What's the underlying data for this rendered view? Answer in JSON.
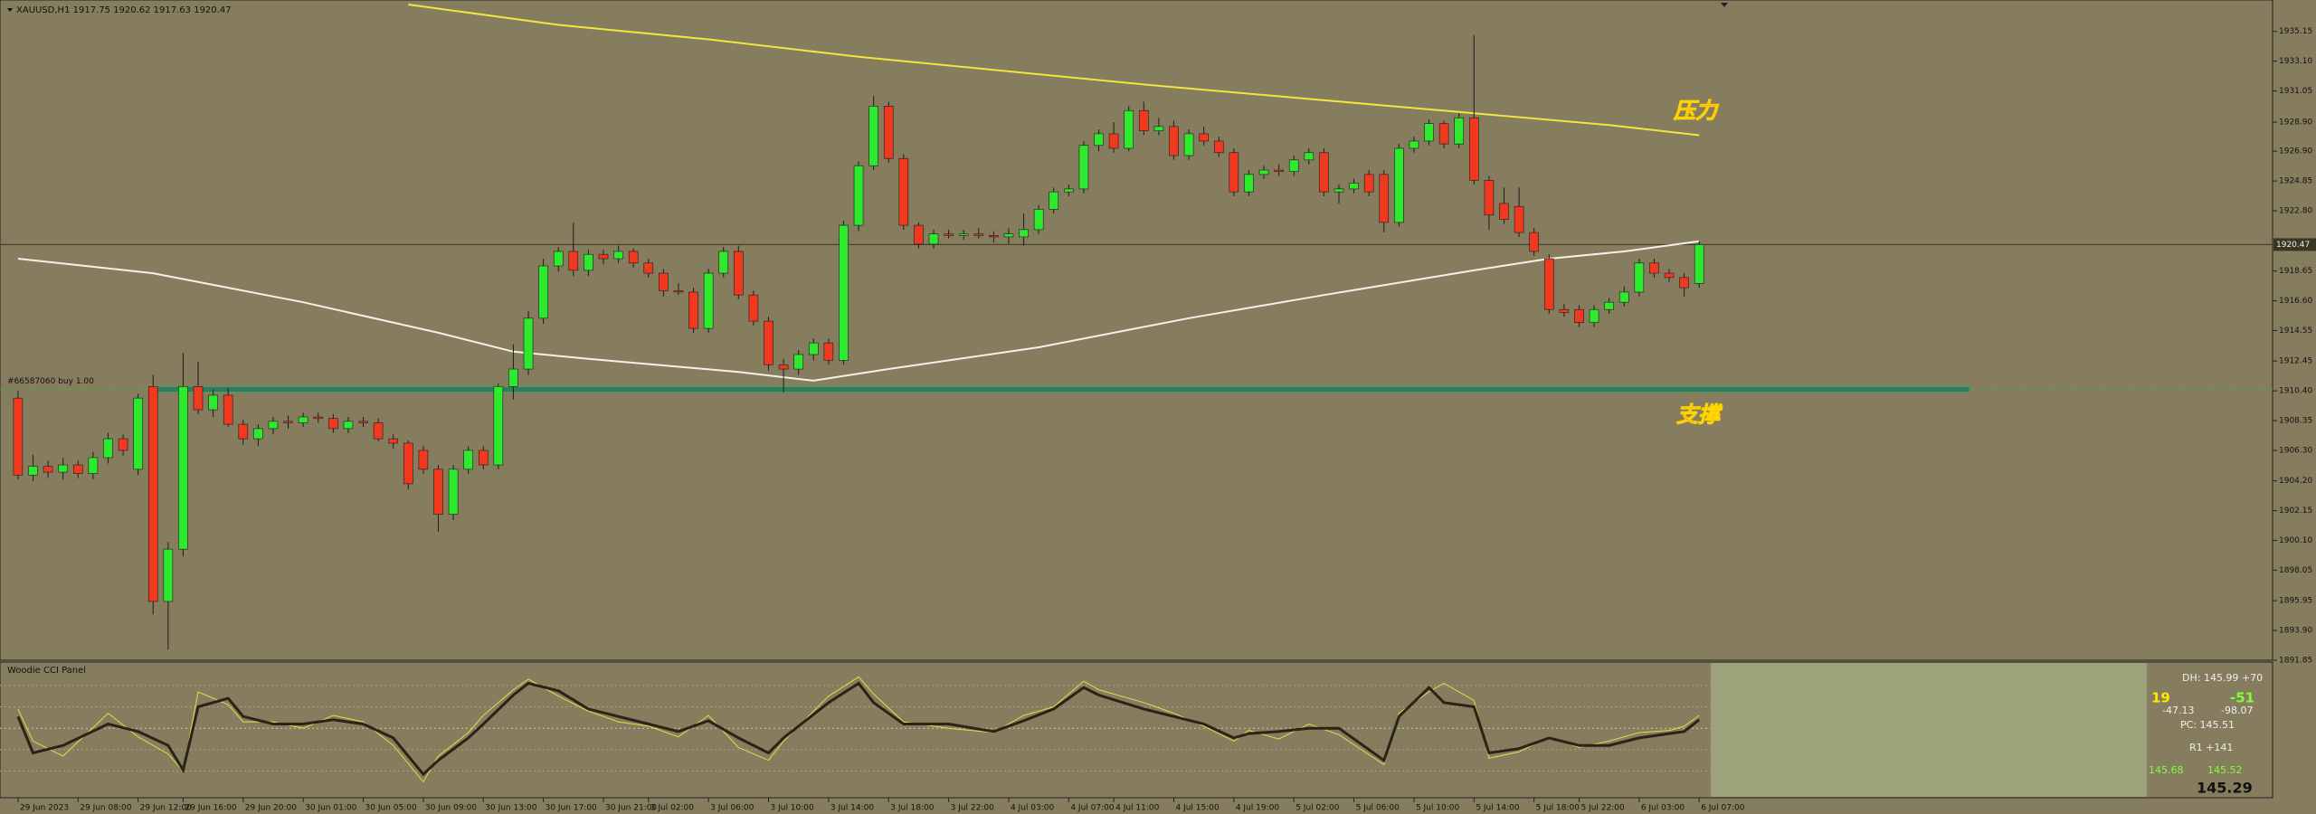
{
  "chart_data": [
    {
      "type": "candlestick",
      "title": "XAUUSD,H1  1917.75 1920.62 1917.63 1920.47",
      "up_color": "#2eea2e",
      "down_color": "#f0391f",
      "xlim": [
        -1.2,
        150.2
      ],
      "ylim": [
        1891.85,
        1937.0
      ],
      "yticks": [
        1891.85,
        {
          "value": 1893.9,
          "label": "1893.90"
        },
        1895.95,
        1898.05,
        {
          "value": 1900.1,
          "label": "1900.10"
        },
        1902.15,
        {
          "value": 1904.2,
          "label": "1904.20"
        },
        {
          "value": 1906.3,
          "label": "1906.30"
        },
        1908.35,
        {
          "value": 1910.4,
          "label": "1910.40"
        },
        1912.45,
        1914.55,
        {
          "value": 1916.6,
          "label": "1916.60"
        },
        1918.65,
        {
          "value": 1922.8,
          "label": "1922.80"
        },
        1924.85,
        {
          "value": 1926.9,
          "label": "1926.90"
        },
        {
          "value": 1928.9,
          "label": "1928.90"
        },
        1931.05,
        {
          "value": 1933.1,
          "label": "1933.10"
        },
        1935.15
      ],
      "xticks": [
        {
          "value": 0,
          "label": "29 Jun 2023"
        },
        {
          "value": 4,
          "label": "29 Jun 08:00"
        },
        {
          "value": 8,
          "label": "29 Jun 12:00"
        },
        {
          "value": 11,
          "label": "29 Jun 16:00"
        },
        {
          "value": 15,
          "label": "29 Jun 20:00"
        },
        {
          "value": 19,
          "label": "30 Jun 01:00"
        },
        {
          "value": 23,
          "label": "30 Jun 05:00"
        },
        {
          "value": 27,
          "label": "30 Jun 09:00"
        },
        {
          "value": 31,
          "label": "30 Jun 13:00"
        },
        {
          "value": 35,
          "label": "30 Jun 17:00"
        },
        {
          "value": 39,
          "label": "30 Jun 21:00"
        },
        {
          "value": 42,
          "label": "3 Jul 02:00"
        },
        {
          "value": 46,
          "label": "3 Jul 06:00"
        },
        {
          "value": 50,
          "label": "3 Jul 10:00"
        },
        {
          "value": 54,
          "label": "3 Jul 14:00"
        },
        {
          "value": 58,
          "label": "3 Jul 18:00"
        },
        {
          "value": 62,
          "label": "3 Jul 22:00"
        },
        {
          "value": 66,
          "label": "4 Jul 03:00"
        },
        {
          "value": 70,
          "label": "4 Jul 07:00"
        },
        {
          "value": 73,
          "label": "4 Jul 11:00"
        },
        {
          "value": 77,
          "label": "4 Jul 15:00"
        },
        {
          "value": 81,
          "label": "4 Jul 19:00"
        },
        {
          "value": 85,
          "label": "5 Jul 02:00"
        },
        {
          "value": 89,
          "label": "5 Jul 06:00"
        },
        {
          "value": 93,
          "label": "5 Jul 10:00"
        },
        {
          "value": 97,
          "label": "5 Jul 14:00"
        },
        {
          "value": 101,
          "label": "5 Jul 18:00"
        },
        {
          "value": 104,
          "label": "5 Jul 22:00"
        },
        {
          "value": 108,
          "label": "6 Jul 03:00"
        },
        {
          "value": 112,
          "label": "6 Jul 07:00"
        }
      ],
      "candles": [
        [
          1909.9,
          1910.4,
          1904.3,
          1904.6
        ],
        [
          1904.6,
          1906.0,
          1904.2,
          1905.2
        ],
        [
          1905.2,
          1905.6,
          1904.4,
          1904.8
        ],
        [
          1904.8,
          1905.8,
          1904.3,
          1905.3
        ],
        [
          1905.3,
          1905.6,
          1904.4,
          1904.7
        ],
        [
          1904.7,
          1906.2,
          1904.3,
          1905.8
        ],
        [
          1905.8,
          1907.5,
          1905.4,
          1907.1
        ],
        [
          1907.1,
          1907.4,
          1905.9,
          1906.3
        ],
        [
          1905.0,
          1910.2,
          1904.6,
          1909.9
        ],
        [
          1910.7,
          1911.5,
          1895.0,
          1895.9
        ],
        [
          1895.9,
          1900.0,
          1892.6,
          1899.5
        ],
        [
          1899.5,
          1913.0,
          1899.0,
          1910.7
        ],
        [
          1910.7,
          1912.4,
          1908.8,
          1909.1
        ],
        [
          1909.1,
          1910.5,
          1908.6,
          1910.1
        ],
        [
          1910.1,
          1910.6,
          1907.9,
          1908.1
        ],
        [
          1908.1,
          1908.4,
          1906.7,
          1907.1
        ],
        [
          1907.1,
          1908.1,
          1906.6,
          1907.8
        ],
        [
          1907.8,
          1908.6,
          1907.4,
          1908.3
        ],
        [
          1908.3,
          1908.7,
          1907.8,
          1908.2
        ],
        [
          1908.2,
          1908.9,
          1907.9,
          1908.6
        ],
        [
          1908.6,
          1908.9,
          1908.2,
          1908.5
        ],
        [
          1908.5,
          1908.8,
          1907.5,
          1907.8
        ],
        [
          1907.8,
          1908.6,
          1907.5,
          1908.3
        ],
        [
          1908.3,
          1908.6,
          1907.9,
          1908.2
        ],
        [
          1908.2,
          1908.5,
          1906.9,
          1907.1
        ],
        [
          1907.1,
          1907.4,
          1906.4,
          1906.8
        ],
        [
          1906.8,
          1907.0,
          1903.6,
          1904.0
        ],
        [
          1906.3,
          1906.6,
          1904.7,
          1905.0
        ],
        [
          1905.0,
          1905.3,
          1900.7,
          1901.9
        ],
        [
          1901.9,
          1905.3,
          1901.5,
          1905.0
        ],
        [
          1905.0,
          1906.6,
          1904.7,
          1906.3
        ],
        [
          1906.3,
          1906.6,
          1905.0,
          1905.3
        ],
        [
          1905.3,
          1910.9,
          1905.0,
          1910.7
        ],
        [
          1910.7,
          1913.6,
          1909.8,
          1911.9
        ],
        [
          1911.9,
          1915.9,
          1911.5,
          1915.4
        ],
        [
          1915.4,
          1919.5,
          1915.0,
          1919.0
        ],
        [
          1919.0,
          1920.3,
          1918.6,
          1920.0
        ],
        [
          1920.0,
          1922.0,
          1918.3,
          1918.7
        ],
        [
          1918.7,
          1920.1,
          1918.3,
          1919.8
        ],
        [
          1919.8,
          1920.1,
          1919.1,
          1919.5
        ],
        [
          1919.5,
          1920.4,
          1919.2,
          1920.0
        ],
        [
          1920.0,
          1920.2,
          1918.9,
          1919.2
        ],
        [
          1919.2,
          1919.5,
          1918.2,
          1918.5
        ],
        [
          1918.5,
          1918.8,
          1916.9,
          1917.3
        ],
        [
          1917.3,
          1917.8,
          1917.0,
          1917.2
        ],
        [
          1917.2,
          1917.5,
          1914.4,
          1914.7
        ],
        [
          1914.7,
          1918.8,
          1914.4,
          1918.5
        ],
        [
          1918.5,
          1920.3,
          1918.2,
          1920.0
        ],
        [
          1920.0,
          1920.4,
          1916.7,
          1917.0
        ],
        [
          1917.0,
          1917.3,
          1914.9,
          1915.2
        ],
        [
          1915.2,
          1915.5,
          1911.8,
          1912.2
        ],
        [
          1912.2,
          1912.6,
          1910.3,
          1911.9
        ],
        [
          1911.9,
          1913.2,
          1911.5,
          1912.9
        ],
        [
          1912.9,
          1914.0,
          1912.5,
          1913.7
        ],
        [
          1913.7,
          1914.0,
          1912.2,
          1912.5
        ],
        [
          1912.5,
          1922.1,
          1912.2,
          1921.8
        ],
        [
          1921.8,
          1926.2,
          1921.4,
          1925.9
        ],
        [
          1925.9,
          1930.7,
          1925.6,
          1930.0
        ],
        [
          1930.0,
          1930.3,
          1926.1,
          1926.4
        ],
        [
          1926.4,
          1926.7,
          1921.5,
          1921.8
        ],
        [
          1921.8,
          1922.0,
          1920.2,
          1920.5
        ],
        [
          1920.5,
          1921.5,
          1920.2,
          1921.2
        ],
        [
          1921.2,
          1921.5,
          1920.9,
          1921.1
        ],
        [
          1921.1,
          1921.5,
          1920.8,
          1921.2
        ],
        [
          1921.2,
          1921.6,
          1920.9,
          1921.1
        ],
        [
          1921.1,
          1921.4,
          1920.6,
          1921.0
        ],
        [
          1921.0,
          1921.6,
          1920.5,
          1921.2
        ],
        [
          1921.0,
          1922.6,
          1920.4,
          1921.5
        ],
        [
          1921.5,
          1923.2,
          1921.2,
          1922.9
        ],
        [
          1922.9,
          1924.4,
          1922.6,
          1924.1
        ],
        [
          1924.1,
          1924.6,
          1923.8,
          1924.3
        ],
        [
          1924.3,
          1927.6,
          1924.0,
          1927.3
        ],
        [
          1927.3,
          1928.4,
          1926.9,
          1928.1
        ],
        [
          1928.1,
          1928.9,
          1926.8,
          1927.1
        ],
        [
          1927.1,
          1930.0,
          1926.9,
          1929.7
        ],
        [
          1929.7,
          1930.3,
          1928.0,
          1928.3
        ],
        [
          1928.3,
          1929.2,
          1928.0,
          1928.6
        ],
        [
          1928.6,
          1929.0,
          1926.3,
          1926.6
        ],
        [
          1926.6,
          1928.4,
          1926.3,
          1928.1
        ],
        [
          1928.1,
          1928.6,
          1927.3,
          1927.6
        ],
        [
          1927.6,
          1927.9,
          1926.5,
          1926.8
        ],
        [
          1926.8,
          1927.1,
          1923.8,
          1924.1
        ],
        [
          1924.1,
          1925.6,
          1923.8,
          1925.3
        ],
        [
          1925.3,
          1925.9,
          1925.0,
          1925.6
        ],
        [
          1925.6,
          1926.0,
          1925.2,
          1925.5
        ],
        [
          1925.5,
          1926.6,
          1925.2,
          1926.3
        ],
        [
          1926.3,
          1927.1,
          1926.0,
          1926.8
        ],
        [
          1926.8,
          1927.1,
          1923.8,
          1924.1
        ],
        [
          1924.1,
          1924.6,
          1923.3,
          1924.3
        ],
        [
          1924.3,
          1925.0,
          1924.0,
          1924.7
        ],
        [
          1925.3,
          1925.6,
          1923.8,
          1924.1
        ],
        [
          1925.3,
          1925.6,
          1921.3,
          1922.0
        ],
        [
          1922.0,
          1927.4,
          1921.7,
          1927.1
        ],
        [
          1927.1,
          1927.9,
          1926.8,
          1927.6
        ],
        [
          1927.6,
          1929.1,
          1927.3,
          1928.8
        ],
        [
          1928.8,
          1929.0,
          1927.1,
          1927.4
        ],
        [
          1927.4,
          1929.5,
          1927.1,
          1929.2
        ],
        [
          1929.2,
          1934.9,
          1924.6,
          1924.9
        ],
        [
          1924.9,
          1925.2,
          1921.5,
          1922.5
        ],
        [
          1923.3,
          1924.4,
          1921.9,
          1922.2
        ],
        [
          1923.1,
          1924.4,
          1921.0,
          1921.3
        ],
        [
          1921.3,
          1921.6,
          1919.7,
          1920.0
        ],
        [
          1919.5,
          1919.8,
          1915.7,
          1916.0
        ],
        [
          1916.0,
          1916.4,
          1915.5,
          1915.8
        ],
        [
          1916.0,
          1916.3,
          1914.8,
          1915.1
        ],
        [
          1915.1,
          1916.3,
          1914.8,
          1916.0
        ],
        [
          1916.0,
          1916.8,
          1915.7,
          1916.5
        ],
        [
          1916.5,
          1917.6,
          1916.2,
          1917.2
        ],
        [
          1917.2,
          1919.5,
          1916.9,
          1919.2
        ],
        [
          1919.2,
          1919.5,
          1918.2,
          1918.5
        ],
        [
          1918.5,
          1918.8,
          1917.9,
          1918.2
        ],
        [
          1918.2,
          1918.5,
          1916.9,
          1917.5
        ],
        [
          1917.8,
          1920.7,
          1917.5,
          1920.47
        ]
      ],
      "series": [
        {
          "color": "#f2e53c",
          "x": [
            26,
            36,
            46,
            56,
            66,
            76,
            86,
            96,
            106,
            112
          ],
          "values": [
            1937.0,
            1935.6,
            1934.6,
            1933.4,
            1932.4,
            1931.4,
            1930.5,
            1929.6,
            1928.7,
            1928.0
          ]
        },
        {
          "color": "#f4f2e6",
          "x": [
            0,
            9,
            19,
            28,
            33,
            38,
            48,
            53,
            58,
            68,
            78,
            87,
            97,
            102,
            107,
            112
          ],
          "values": [
            1919.5,
            1918.5,
            1916.5,
            1914.4,
            1913.1,
            1912.6,
            1911.7,
            1911.1,
            1911.9,
            1913.4,
            1915.4,
            1917.0,
            1918.7,
            1919.5,
            1920.0,
            1920.7
          ]
        }
      ],
      "current_price": 1920.47,
      "order": {
        "label": "#66587060 buy 1.00",
        "value": 1910.5,
        "color": "#2f7d5a"
      },
      "annotations": [
        "压力",
        "支撑"
      ]
    },
    {
      "type": "line",
      "title": "Woodie CCI Panel",
      "xlim": [
        -1.2,
        150.2
      ],
      "ylim": [
        -320,
        305
      ],
      "levels": [
        200,
        100,
        0,
        -100,
        -200
      ],
      "x": [
        0,
        1,
        3,
        6,
        8,
        10,
        11,
        12,
        14,
        15,
        17,
        19,
        21,
        23,
        25,
        27,
        28,
        30,
        31,
        33,
        34,
        36,
        38,
        40,
        42,
        44,
        46,
        48,
        50,
        51,
        54,
        56,
        57,
        59,
        62,
        65,
        67,
        69,
        71,
        72,
        75,
        77,
        79,
        81,
        82,
        84,
        86,
        88,
        91,
        92,
        94,
        95,
        97,
        98,
        100,
        102,
        104,
        106,
        108,
        110,
        111,
        112
      ],
      "series": [
        {
          "color": "#e8d84a",
          "values": [
            90,
            -60,
            -130,
            70,
            -40,
            -120,
            -200,
            170,
            110,
            30,
            30,
            0,
            60,
            30,
            -80,
            -250,
            -130,
            -20,
            60,
            180,
            230,
            150,
            80,
            30,
            10,
            -40,
            60,
            -90,
            -150,
            -60,
            150,
            240,
            160,
            30,
            0,
            -20,
            60,
            100,
            220,
            180,
            120,
            70,
            10,
            -60,
            -10,
            -50,
            20,
            -30,
            -170,
            70,
            170,
            210,
            130,
            -140,
            -110,
            -40,
            -90,
            -60,
            -20,
            -10,
            10,
            60
          ]
        },
        {
          "color": "#2a2418",
          "values": [
            55,
            -115,
            -80,
            20,
            -15,
            -80,
            -195,
            100,
            140,
            55,
            20,
            20,
            40,
            20,
            -45,
            -215,
            -150,
            -45,
            20,
            155,
            210,
            175,
            90,
            55,
            20,
            -15,
            35,
            -45,
            -115,
            -45,
            120,
            210,
            120,
            20,
            20,
            -15,
            35,
            90,
            190,
            155,
            90,
            55,
            20,
            -45,
            -25,
            -15,
            0,
            0,
            -150,
            55,
            190,
            120,
            100,
            -115,
            -95,
            -45,
            -80,
            -80,
            -45,
            -25,
            -15,
            40
          ]
        }
      ],
      "info": {
        "dh": "DH: 145.99 +70",
        "up": "19",
        "down": "-51",
        "left": "-47.13",
        "right": "-98.07",
        "pc": "PC: 145.51",
        "r1": "R1 +141",
        "lo": "145.68",
        "hi": "145.52",
        "last": "145.29"
      }
    }
  ]
}
